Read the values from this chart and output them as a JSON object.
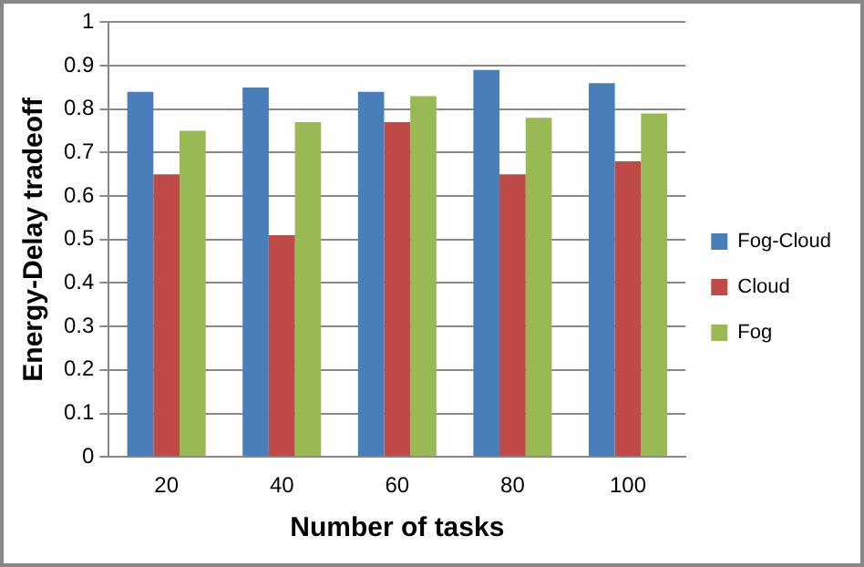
{
  "chart_data": {
    "type": "bar",
    "xlabel": "Number of tasks",
    "ylabel": "Energy-Delay tradeoff",
    "categories": [
      "20",
      "40",
      "60",
      "80",
      "100"
    ],
    "series": [
      {
        "name": "Fog-Cloud",
        "color": "#4a7ebb",
        "values": [
          0.84,
          0.85,
          0.84,
          0.89,
          0.86
        ]
      },
      {
        "name": "Cloud",
        "color": "#be4b48",
        "values": [
          0.65,
          0.51,
          0.77,
          0.65,
          0.68
        ]
      },
      {
        "name": "Fog",
        "color": "#98b954",
        "values": [
          0.75,
          0.77,
          0.83,
          0.78,
          0.79
        ]
      }
    ],
    "ylim": [
      0,
      1
    ],
    "yticks": [
      0,
      0.1,
      0.2,
      0.3,
      0.4,
      0.5,
      0.6,
      0.7,
      0.8,
      0.9,
      1
    ],
    "grid": "y",
    "legend": "right"
  }
}
